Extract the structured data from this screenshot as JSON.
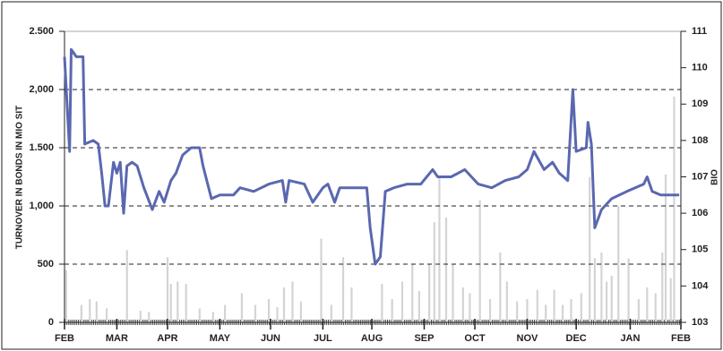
{
  "chart_data": {
    "type": "bar-line",
    "y_label": "TURNOVER IN BONDS IN MIO SIT",
    "y2_label": "BIO",
    "xlim": [
      0,
      365
    ],
    "xticks": [
      {
        "value": 0,
        "label": "FEB"
      },
      {
        "value": 31,
        "label": "MAR"
      },
      {
        "value": 61,
        "label": "APR"
      },
      {
        "value": 92,
        "label": "MAY"
      },
      {
        "value": 122,
        "label": "JUN"
      },
      {
        "value": 153,
        "label": "JUL"
      },
      {
        "value": 182,
        "label": "AUG"
      },
      {
        "value": 213,
        "label": "SEP"
      },
      {
        "value": 243,
        "label": "OCT"
      },
      {
        "value": 274,
        "label": "NOV"
      },
      {
        "value": 303,
        "label": "DEC"
      },
      {
        "value": 335,
        "label": "JAN"
      },
      {
        "value": 365,
        "label": "FEB"
      }
    ],
    "ylim": [
      0,
      2500
    ],
    "yticks": [
      0,
      500,
      {
        "value": 1000,
        "label": "1,000"
      },
      {
        "value": 1500,
        "label": "1.500"
      },
      {
        "value": 2000,
        "label": "2,000"
      },
      {
        "value": 2500,
        "label": "2.500"
      }
    ],
    "y2lim": [
      103,
      111
    ],
    "y2ticks": [
      103,
      104,
      105,
      106,
      107,
      108,
      109,
      110,
      111
    ],
    "grid": true,
    "bars": {
      "color": "#d4d4d4",
      "x": [
        1,
        10,
        15,
        19,
        25,
        37,
        45,
        50,
        61,
        63,
        67,
        72,
        80,
        88,
        95,
        105,
        113,
        121,
        126,
        130,
        135,
        140,
        152,
        158,
        165,
        170,
        188,
        194,
        200,
        206,
        210,
        216,
        219,
        222,
        226,
        230,
        236,
        240,
        246,
        252,
        258,
        262,
        268,
        274,
        280,
        285,
        290,
        295,
        300,
        306,
        311,
        314,
        318,
        321,
        324,
        328,
        334,
        340,
        345,
        350,
        354,
        356,
        359,
        361
      ],
      "values": [
        450,
        150,
        200,
        180,
        120,
        620,
        100,
        90,
        560,
        330,
        350,
        330,
        120,
        90,
        150,
        250,
        150,
        200,
        130,
        300,
        350,
        180,
        720,
        150,
        560,
        300,
        330,
        200,
        350,
        500,
        270,
        500,
        860,
        1250,
        900,
        500,
        300,
        250,
        1050,
        200,
        600,
        350,
        180,
        200,
        280,
        150,
        280,
        150,
        200,
        250,
        1250,
        550,
        600,
        350,
        400,
        1000,
        550,
        200,
        300,
        250,
        600,
        1270,
        380,
        1940
      ]
    },
    "line": {
      "color": "#5a68b0",
      "axis": "y2",
      "x": [
        0,
        3,
        4,
        7,
        11,
        12,
        17,
        20,
        22,
        24,
        26,
        29,
        31,
        33,
        35,
        37,
        40,
        43,
        47,
        52,
        56,
        59,
        63,
        66,
        70,
        75,
        80,
        82,
        87,
        92,
        100,
        104,
        112,
        121,
        129,
        131,
        133,
        142,
        147,
        153,
        156,
        160,
        163,
        171,
        179,
        181,
        184,
        187,
        190,
        195,
        203,
        211,
        218,
        221,
        229,
        237,
        245,
        253,
        261,
        269,
        274,
        278,
        284,
        289,
        293,
        298,
        301,
        303,
        309,
        310,
        312,
        314,
        318,
        324,
        333,
        343,
        345,
        348,
        353,
        361,
        364
      ],
      "values": [
        110.3,
        107.7,
        110.5,
        110.3,
        110.3,
        107.9,
        108.0,
        107.9,
        107.1,
        106.2,
        106.2,
        107.4,
        107.1,
        107.4,
        106.0,
        107.3,
        107.4,
        107.3,
        106.7,
        106.1,
        106.6,
        106.3,
        106.9,
        107.1,
        107.6,
        107.8,
        107.8,
        107.3,
        106.4,
        106.5,
        106.5,
        106.7,
        106.6,
        106.8,
        106.9,
        106.3,
        106.9,
        106.8,
        106.3,
        106.7,
        106.8,
        106.3,
        106.7,
        106.7,
        106.7,
        105.6,
        104.6,
        104.8,
        106.6,
        106.7,
        106.8,
        106.8,
        107.2,
        107.0,
        107.0,
        107.2,
        106.8,
        106.7,
        106.9,
        107.0,
        107.2,
        107.7,
        107.2,
        107.4,
        107.1,
        106.9,
        109.4,
        107.7,
        107.8,
        108.5,
        107.9,
        105.6,
        106.1,
        106.4,
        106.6,
        106.8,
        107.0,
        106.6,
        106.5,
        106.5,
        106.5
      ]
    }
  }
}
